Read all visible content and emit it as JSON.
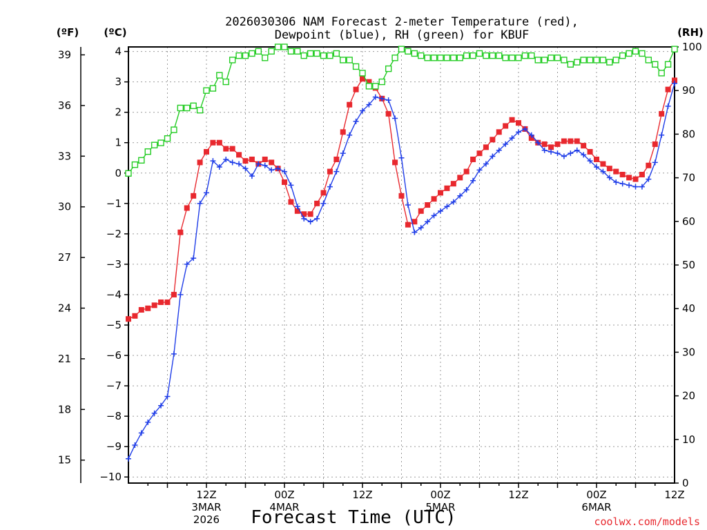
{
  "chart_data": {
    "type": "line",
    "title": "2026030306 NAM Forecast 2-meter Temperature (red),",
    "subtitle": "Dewpoint (blue), RH (green) for KBUF",
    "xlabel": "Forecast Time (UTC)",
    "credit": "coolwx.com/models",
    "units": {
      "fahrenheit": "(ºF)",
      "celsius": "(ºC)",
      "rh": "(RH)"
    },
    "ylim_celsius": [
      -10.2,
      4.15
    ],
    "ylim_rh": [
      0,
      100
    ],
    "y_ticks_celsius": [
      "4",
      "3",
      "2",
      "1",
      "0",
      "−1",
      "−2",
      "−3",
      "−4",
      "−5",
      "−6",
      "−7",
      "−8",
      "−9",
      "−10"
    ],
    "y_ticks_fahrenheit": [
      "39",
      "36",
      "33",
      "30",
      "27",
      "24",
      "21",
      "18",
      "15"
    ],
    "y_ticks_rh": [
      "100",
      "90",
      "80",
      "70",
      "60",
      "50",
      "40",
      "30",
      "20",
      "10",
      "0"
    ],
    "x_ticks": [
      {
        "hour": 12,
        "lines": [
          "12Z",
          "3MAR",
          "2026"
        ]
      },
      {
        "hour": 24,
        "lines": [
          "00Z",
          "4MAR"
        ]
      },
      {
        "hour": 36,
        "lines": [
          "12Z"
        ]
      },
      {
        "hour": 48,
        "lines": [
          "00Z",
          "5MAR"
        ]
      },
      {
        "hour": 60,
        "lines": [
          "12Z"
        ]
      },
      {
        "hour": 72,
        "lines": [
          "00Z",
          "6MAR"
        ]
      },
      {
        "hour": 84,
        "lines": [
          "12Z"
        ]
      }
    ],
    "xlim_hours_from_run": [
      0,
      84
    ],
    "grid": true,
    "series": [
      {
        "name": "Temperature",
        "color": "#e8282e",
        "unit": "C",
        "marker": "filled-square",
        "values": [
          -4.8,
          -4.7,
          -4.5,
          -4.45,
          -4.35,
          -4.25,
          -4.25,
          -4.0,
          -1.95,
          -1.15,
          -0.75,
          0.35,
          0.7,
          1.0,
          1.0,
          0.8,
          0.8,
          0.6,
          0.4,
          0.45,
          0.3,
          0.45,
          0.35,
          0.15,
          -0.3,
          -0.95,
          -1.25,
          -1.35,
          -1.35,
          -1.0,
          -0.65,
          0.05,
          0.45,
          1.35,
          2.25,
          2.75,
          3.1,
          3.0,
          2.8,
          2.45,
          1.95,
          0.35,
          -0.75,
          -1.7,
          -1.6,
          -1.25,
          -1.05,
          -0.85,
          -0.65,
          -0.5,
          -0.35,
          -0.15,
          0.05,
          0.45,
          0.65,
          0.85,
          1.1,
          1.35,
          1.55,
          1.75,
          1.65,
          1.45,
          1.15,
          1.0,
          0.95,
          0.85,
          0.95,
          1.05,
          1.05,
          1.05,
          0.9,
          0.7,
          0.45,
          0.3,
          0.15,
          0.05,
          -0.05,
          -0.15,
          -0.2,
          -0.05,
          0.25,
          0.95,
          1.95,
          2.75,
          3.05
        ]
      },
      {
        "name": "Dewpoint",
        "color": "#1e3ce8",
        "unit": "C",
        "marker": "plus",
        "values": [
          -9.4,
          -8.95,
          -8.55,
          -8.2,
          -7.9,
          -7.65,
          -7.35,
          -5.95,
          -4.0,
          -3.0,
          -2.8,
          -1.0,
          -0.65,
          0.4,
          0.2,
          0.45,
          0.35,
          0.3,
          0.15,
          -0.1,
          0.3,
          0.25,
          0.1,
          0.15,
          0.05,
          -0.4,
          -1.1,
          -1.5,
          -1.6,
          -1.5,
          -1.0,
          -0.45,
          0.05,
          0.65,
          1.25,
          1.7,
          2.05,
          2.25,
          2.5,
          2.45,
          2.4,
          1.8,
          0.5,
          -1.05,
          -1.95,
          -1.8,
          -1.6,
          -1.4,
          -1.25,
          -1.1,
          -0.95,
          -0.75,
          -0.55,
          -0.25,
          0.1,
          0.3,
          0.55,
          0.75,
          0.95,
          1.15,
          1.35,
          1.45,
          1.25,
          1.0,
          0.75,
          0.7,
          0.65,
          0.55,
          0.65,
          0.75,
          0.6,
          0.4,
          0.2,
          0.05,
          -0.15,
          -0.3,
          -0.35,
          -0.4,
          -0.45,
          -0.45,
          -0.2,
          0.35,
          1.25,
          2.2,
          2.95
        ]
      },
      {
        "name": "RH",
        "color": "#22cc22",
        "unit": "%",
        "marker": "open-square",
        "values": [
          71,
          73,
          74,
          76,
          77.5,
          78,
          79,
          81,
          86,
          86,
          86.5,
          85.5,
          90,
          90.5,
          93.5,
          92,
          97,
          98,
          98,
          98.5,
          99,
          97.5,
          99,
          100,
          100,
          99,
          99,
          98,
          98.5,
          98.5,
          98,
          98,
          98.5,
          97,
          97,
          95.5,
          94,
          91,
          91,
          92,
          95,
          97.5,
          99.5,
          99,
          98.5,
          98,
          97.5,
          97.5,
          97.5,
          97.5,
          97.5,
          97.5,
          98,
          98,
          98.5,
          98,
          98,
          98,
          97.5,
          97.5,
          97.5,
          98,
          98,
          97,
          97,
          97.5,
          97.5,
          97,
          96,
          96.5,
          97,
          97,
          97,
          97,
          96.5,
          97,
          98,
          98.5,
          99,
          98.5,
          97,
          96,
          94,
          96,
          99.5
        ]
      }
    ]
  }
}
